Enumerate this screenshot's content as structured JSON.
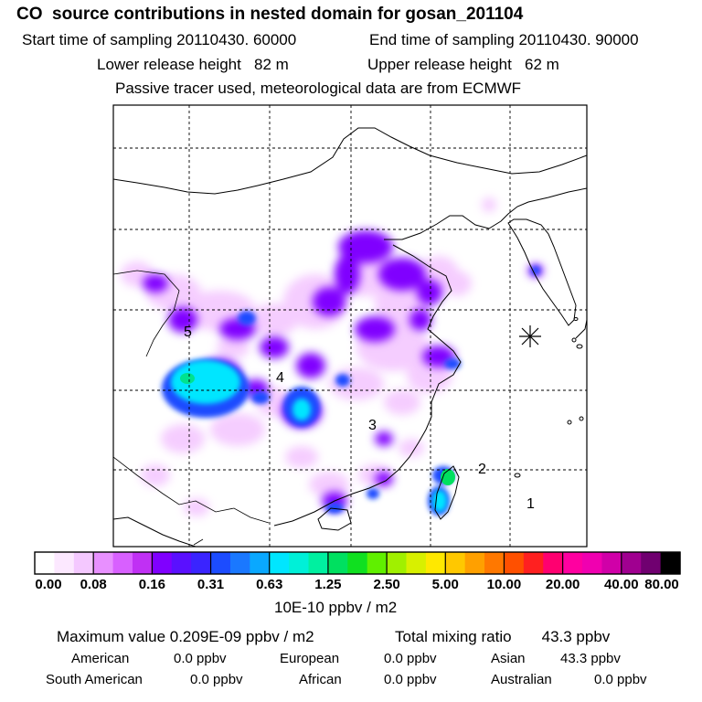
{
  "header": {
    "title": "CO  source contributions in nested domain for gosan_201104",
    "start_time": "Start time of sampling 20110430. 60000",
    "end_time": "End time of sampling 20110430. 90000",
    "lower_release": "Lower release height   82 m",
    "upper_release": "Upper release height   62 m",
    "tracer_note": "Passive tracer used, meteorological data are from ECMWF"
  },
  "chart_data": {
    "type": "heatmap",
    "title": "CO  source contributions in nested domain for gosan_201104",
    "colorbar": {
      "units": "10E-10 ppbv / m2",
      "tick_labels": [
        "0.00",
        "0.08",
        "0.16",
        "0.31",
        "0.63",
        "1.25",
        "2.50",
        "5.00",
        "10.00",
        "20.00",
        "40.00",
        "80.00"
      ],
      "tick_values": [
        0.0,
        0.08,
        0.16,
        0.31,
        0.63,
        1.25,
        2.5,
        5.0,
        10.0,
        20.0,
        40.0,
        80.0
      ],
      "segments_per_interval": 3,
      "colors": [
        "#ffffff",
        "#fce8ff",
        "#f4c8ff",
        "#e890ff",
        "#d860ff",
        "#c030f4",
        "#8000ff",
        "#5a10ff",
        "#3a24ff",
        "#1c4cff",
        "#1a78ff",
        "#0aa8ff",
        "#00e6ff",
        "#00f0d8",
        "#00f0a0",
        "#00e060",
        "#10e020",
        "#60f000",
        "#a0f000",
        "#d8f000",
        "#ffe800",
        "#ffc800",
        "#ffa000",
        "#ff7800",
        "#ff5000",
        "#ff2020",
        "#ff0070",
        "#ff00a0",
        "#f000b0",
        "#d000a8",
        "#a00090",
        "#700070"
      ]
    },
    "plume_levels": {
      "low": 0.06,
      "medium": 0.16,
      "high": 0.31,
      "peak": 0.63,
      "max": 1.25
    },
    "receptor_numbers": [
      "1",
      "2",
      "3",
      "4",
      "5"
    ],
    "marker": "receptor-star"
  },
  "stats": {
    "max_value_label": "Maximum value  0.209E-09 ppbv / m2",
    "total_mixing_label": "Total mixing ratio       43.3 ppbv",
    "regions": [
      {
        "name": "American",
        "value": "0.0 ppbv"
      },
      {
        "name": "European",
        "value": "0.0 ppbv"
      },
      {
        "name": "Asian",
        "value": "43.3 ppbv"
      },
      {
        "name": "South American",
        "value": "0.0 ppbv"
      },
      {
        "name": "African",
        "value": "0.0 ppbv"
      },
      {
        "name": "Australian",
        "value": "0.0 ppbv"
      }
    ]
  }
}
